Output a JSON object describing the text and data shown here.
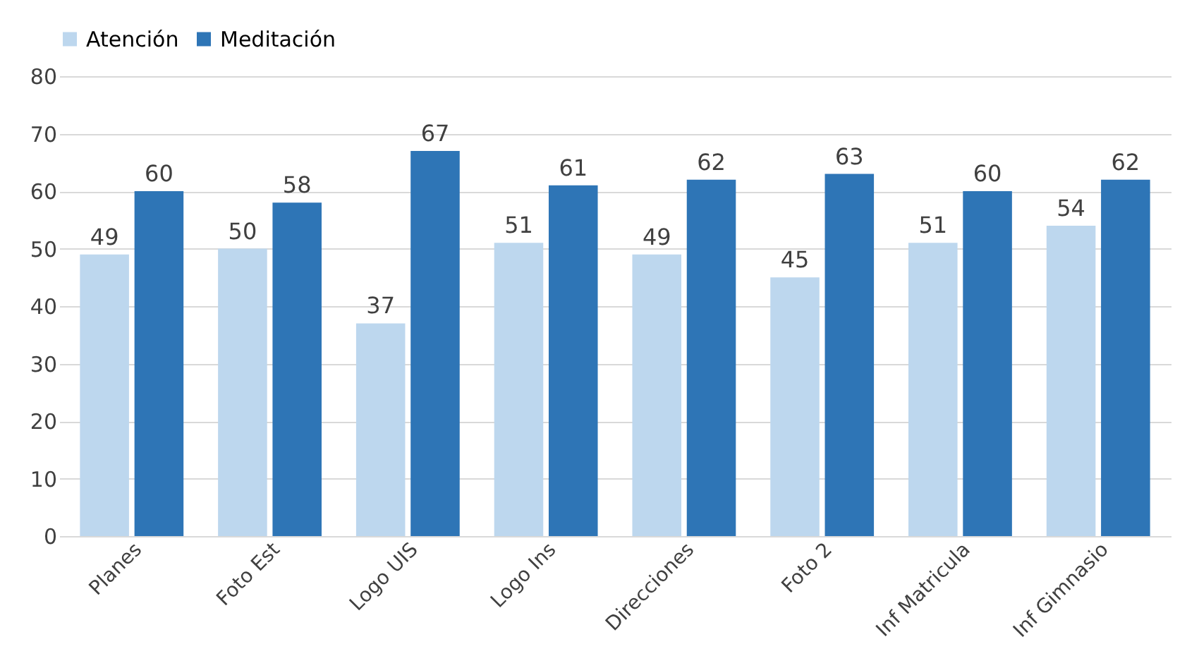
{
  "chart_data": {
    "type": "bar",
    "categories": [
      "Planes",
      "Foto Est",
      "Logo UIS",
      "Logo Ins",
      "Direcciones",
      "Foto 2",
      "Inf Matricula",
      "Inf Gimnasio"
    ],
    "series": [
      {
        "name": "Atención",
        "color": "#bdd7ee",
        "values": [
          49,
          50,
          37,
          51,
          49,
          45,
          51,
          54
        ]
      },
      {
        "name": "Meditación",
        "color": "#2e75b6",
        "values": [
          60,
          58,
          67,
          61,
          62,
          63,
          60,
          62
        ]
      }
    ],
    "ylim": [
      0,
      80
    ],
    "yticks": [
      0,
      10,
      20,
      30,
      40,
      50,
      60,
      70,
      80
    ],
    "grid": "y",
    "legend": "top",
    "data_labels": true
  }
}
